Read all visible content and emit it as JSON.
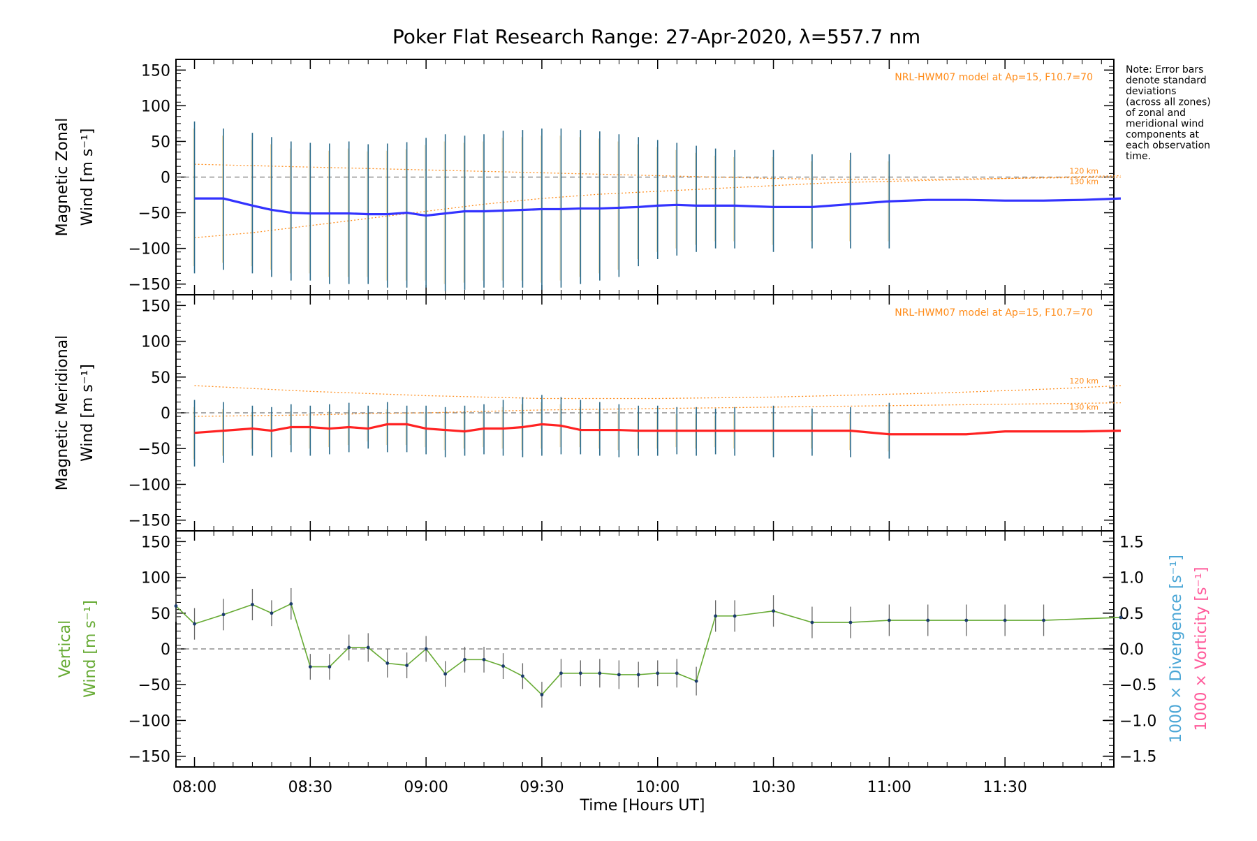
{
  "title": "Poker Flat Research Range: 27-Apr-2020, λ=557.7 nm",
  "note_lines": [
    "Note: Error bars",
    "denote standard",
    "deviations",
    "(across all zones)",
    "of zonal and",
    "meridional wind",
    "components at",
    "each observation",
    "time."
  ],
  "xlabel": "Time [Hours UT]",
  "xticks": [
    "08:00",
    "08:30",
    "09:00",
    "09:30",
    "10:00",
    "10:30",
    "11:00",
    "11:30"
  ],
  "colors": {
    "zonal": "#3333ff",
    "meridional": "#ff2222",
    "vertical": "#66aa33",
    "model": "#ff8c1a",
    "divergence": "#4aa6d6",
    "vorticity": "#ff5a9a",
    "scatter": "#aaaaee"
  },
  "panels": {
    "zonal": {
      "ylabel_line1": "Magnetic Zonal",
      "ylabel_line2": "Wind [m s⁻¹]",
      "model_label": "NRL-HWM07 model at Ap=15, F10.7=70",
      "alt_label_1": "120 km",
      "alt_label_2": "130 km"
    },
    "meridional": {
      "ylabel_line1": "Magnetic Meridional",
      "ylabel_line2": "Wind [m s⁻¹]",
      "model_label": "NRL-HWM07 model at Ap=15, F10.7=70",
      "alt_label_1": "120 km",
      "alt_label_2": "130 km"
    },
    "vertical": {
      "ylabel_line1": "Vertical",
      "ylabel_line2": "Wind [m s⁻¹]",
      "right_label_1": "1000 × Divergence [s⁻¹]",
      "right_label_2": "1000 × Vorticity [s⁻¹]",
      "right_ticks": [
        "1.5",
        "1.0",
        "0.5",
        "0.0",
        "−0.5",
        "−1.0",
        "−1.5"
      ]
    }
  },
  "chart_data": [
    {
      "type": "line",
      "name": "zonal",
      "ylim": [
        -165,
        165
      ],
      "yticks": [
        150,
        100,
        50,
        0,
        -50,
        -100,
        -150
      ],
      "x": [
        8.0,
        8.125,
        8.25,
        8.333,
        8.417,
        8.5,
        8.583,
        8.667,
        8.75,
        8.833,
        8.917,
        9.0,
        9.083,
        9.167,
        9.25,
        9.333,
        9.417,
        9.5,
        9.583,
        9.667,
        9.75,
        9.833,
        9.917,
        10.0,
        10.083,
        10.167,
        10.25,
        10.333,
        10.5,
        10.667,
        10.833,
        11.0,
        11.167,
        11.333,
        11.5,
        11.667,
        11.833,
        12.0
      ],
      "y": [
        -30,
        -30,
        -40,
        -46,
        -50,
        -51,
        -51,
        -51,
        -52,
        -52,
        -50,
        -54,
        -51,
        -48,
        -48,
        -47,
        -46,
        -45,
        -45,
        -44,
        -44,
        -43,
        -42,
        -40,
        -39,
        -40,
        -40,
        -40,
        -42,
        -42,
        -38,
        -34,
        -32,
        -32,
        -33,
        -33,
        -32,
        -30
      ],
      "err_low": [
        -135,
        -130,
        -135,
        -140,
        -145,
        -145,
        -150,
        -150,
        -150,
        -155,
        -155,
        -155,
        -160,
        -158,
        -155,
        -155,
        -155,
        -158,
        -155,
        -150,
        -145,
        -140,
        -125,
        -115,
        -110,
        -105,
        -100,
        -100,
        -105,
        -100,
        -100,
        -100
      ],
      "err_high": [
        78,
        68,
        62,
        56,
        50,
        48,
        47,
        50,
        46,
        47,
        49,
        55,
        60,
        58,
        60,
        65,
        66,
        68,
        68,
        66,
        64,
        60,
        56,
        52,
        48,
        44,
        40,
        38,
        38,
        32,
        34,
        32
      ],
      "err_x": [
        8.0,
        8.125,
        8.25,
        8.333,
        8.417,
        8.5,
        8.583,
        8.667,
        8.75,
        8.833,
        8.917,
        9.0,
        9.083,
        9.167,
        9.25,
        9.333,
        9.417,
        9.5,
        9.583,
        9.667,
        9.75,
        9.833,
        9.917,
        10.0,
        10.083,
        10.167,
        10.25,
        10.333,
        10.5,
        10.667,
        10.833,
        11.0
      ],
      "model_120": [
        -85,
        -78,
        -68,
        -58,
        -48,
        -38,
        -30,
        -24,
        -20,
        -16,
        -12,
        -8,
        -6,
        -4,
        -2,
        0,
        2
      ],
      "model_130": [
        18,
        16,
        14,
        12,
        10,
        8,
        6,
        4,
        2,
        0,
        -2,
        -3,
        -3,
        -3,
        -2,
        -1,
        0
      ],
      "model_x": [
        8.0,
        8.25,
        8.5,
        8.75,
        9.0,
        9.25,
        9.5,
        9.75,
        10.0,
        10.25,
        10.5,
        10.75,
        11.0,
        11.25,
        11.5,
        11.75,
        12.0
      ]
    },
    {
      "type": "line",
      "name": "meridional",
      "ylim": [
        -165,
        165
      ],
      "yticks": [
        150,
        100,
        50,
        0,
        -50,
        -100,
        -150
      ],
      "x": [
        8.0,
        8.125,
        8.25,
        8.333,
        8.417,
        8.5,
        8.583,
        8.667,
        8.75,
        8.833,
        8.917,
        9.0,
        9.083,
        9.167,
        9.25,
        9.333,
        9.417,
        9.5,
        9.583,
        9.667,
        9.75,
        9.833,
        9.917,
        10.0,
        10.083,
        10.167,
        10.25,
        10.333,
        10.5,
        10.667,
        10.833,
        11.0,
        11.167,
        11.333,
        11.5,
        11.667,
        11.833,
        12.0
      ],
      "y": [
        -28,
        -25,
        -22,
        -25,
        -20,
        -20,
        -22,
        -20,
        -22,
        -16,
        -16,
        -22,
        -24,
        -26,
        -22,
        -22,
        -20,
        -16,
        -18,
        -24,
        -24,
        -24,
        -25,
        -25,
        -25,
        -25,
        -25,
        -25,
        -25,
        -25,
        -25,
        -30,
        -30,
        -30,
        -26,
        -26,
        -26,
        -25
      ],
      "err_x": [
        8.0,
        8.125,
        8.25,
        8.333,
        8.417,
        8.5,
        8.583,
        8.667,
        8.75,
        8.833,
        8.917,
        9.0,
        9.083,
        9.167,
        9.25,
        9.333,
        9.417,
        9.5,
        9.583,
        9.667,
        9.75,
        9.833,
        9.917,
        10.0,
        10.083,
        10.167,
        10.25,
        10.333,
        10.5,
        10.667,
        10.833,
        11.0
      ],
      "err_low": [
        -75,
        -70,
        -60,
        -62,
        -55,
        -60,
        -58,
        -55,
        -50,
        -55,
        -55,
        -58,
        -62,
        -60,
        -58,
        -60,
        -62,
        -60,
        -58,
        -58,
        -60,
        -62,
        -60,
        -60,
        -58,
        -60,
        -58,
        -60,
        -62,
        -60,
        -62,
        -64
      ],
      "err_high": [
        18,
        15,
        10,
        8,
        12,
        10,
        12,
        14,
        10,
        15,
        10,
        10,
        8,
        10,
        12,
        18,
        22,
        25,
        22,
        18,
        15,
        12,
        10,
        10,
        8,
        8,
        6,
        8,
        10,
        6,
        8,
        14
      ],
      "model_120": [
        38,
        34,
        30,
        27,
        24,
        22,
        20,
        20,
        20,
        21,
        22,
        24,
        26,
        28,
        31,
        34,
        38
      ],
      "model_130": [
        -5,
        -4,
        -3,
        -1,
        0,
        2,
        4,
        5,
        6,
        7,
        8,
        9,
        10,
        11,
        12,
        13,
        14
      ],
      "model_x": [
        8.0,
        8.25,
        8.5,
        8.75,
        9.0,
        9.25,
        9.5,
        9.75,
        10.0,
        10.25,
        10.5,
        10.75,
        11.0,
        11.25,
        11.5,
        11.75,
        12.0
      ]
    },
    {
      "type": "line",
      "name": "vertical",
      "ylim": [
        -165,
        165
      ],
      "yticks": [
        150,
        100,
        50,
        0,
        -50,
        -100,
        -150
      ],
      "right_ylim": [
        -1.65,
        1.65
      ],
      "x": [
        7.92,
        8.0,
        8.125,
        8.25,
        8.333,
        8.417,
        8.5,
        8.583,
        8.667,
        8.75,
        8.833,
        8.917,
        9.0,
        9.083,
        9.167,
        9.25,
        9.333,
        9.417,
        9.5,
        9.583,
        9.667,
        9.75,
        9.833,
        9.917,
        10.0,
        10.083,
        10.167,
        10.25,
        10.333,
        10.5,
        10.667,
        10.833,
        11.0,
        11.167,
        11.333,
        11.5,
        11.667,
        12.0
      ],
      "y": [
        60,
        35,
        48,
        62,
        50,
        63,
        -25,
        -25,
        2,
        2,
        -20,
        -23,
        0,
        -35,
        -15,
        -15,
        -24,
        -38,
        -64,
        -34,
        -34,
        -34,
        -36,
        -36,
        -34,
        -34,
        -45,
        46,
        46,
        53,
        37,
        37,
        40,
        40,
        40,
        40,
        40,
        44
      ],
      "err": [
        22,
        22,
        22,
        22,
        18,
        22,
        18,
        18,
        18,
        20,
        20,
        18,
        18,
        18,
        18,
        18,
        18,
        18,
        18,
        20,
        18,
        20,
        20,
        18,
        18,
        20,
        20,
        22,
        22,
        22,
        22,
        22,
        22,
        22,
        22,
        22,
        22,
        0
      ]
    }
  ]
}
